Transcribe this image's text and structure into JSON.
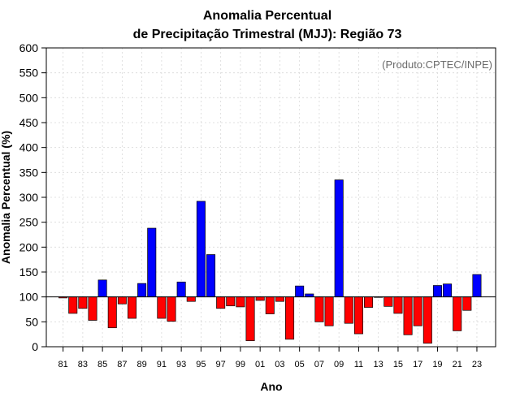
{
  "chart_data": {
    "type": "bar",
    "title_line1": "Anomalia Percentual",
    "title_line2": "de Precipitação Trimestral (MJJ): Região 73",
    "xlabel": "Ano",
    "ylabel": "Anomalia Percentual (%)",
    "credit": "(Produto:CPTEC/INPE)",
    "ylim": [
      0,
      600
    ],
    "yticks": [
      "0",
      "50",
      "100",
      "150",
      "200",
      "250",
      "300",
      "350",
      "400",
      "450",
      "500",
      "550",
      "600"
    ],
    "baseline": 100,
    "x_tick_labels": [
      "81",
      "83",
      "85",
      "87",
      "89",
      "91",
      "93",
      "95",
      "97",
      "99",
      "01",
      "03",
      "05",
      "07",
      "09",
      "11",
      "13",
      "15",
      "17",
      "19",
      "21",
      "23"
    ],
    "years": [
      1981,
      1982,
      1983,
      1984,
      1985,
      1986,
      1987,
      1988,
      1989,
      1990,
      1991,
      1992,
      1993,
      1994,
      1995,
      1996,
      1997,
      1998,
      1999,
      2000,
      2001,
      2002,
      2003,
      2004,
      2005,
      2006,
      2007,
      2008,
      2009,
      2010,
      2011,
      2012,
      2013,
      2014,
      2015,
      2016,
      2017,
      2018,
      2019,
      2020,
      2021,
      2022,
      2023
    ],
    "values": [
      98,
      67,
      77,
      53,
      134,
      38,
      86,
      57,
      127,
      238,
      57,
      51,
      130,
      91,
      292,
      185,
      77,
      82,
      80,
      12,
      93,
      66,
      91,
      15,
      122,
      106,
      50,
      42,
      335,
      47,
      26,
      79,
      100,
      81,
      67,
      24,
      42,
      7,
      123,
      126,
      32,
      73,
      145
    ],
    "colors": {
      "above": "#0000ff",
      "below": "#ff0000",
      "edge": "#000000"
    }
  }
}
